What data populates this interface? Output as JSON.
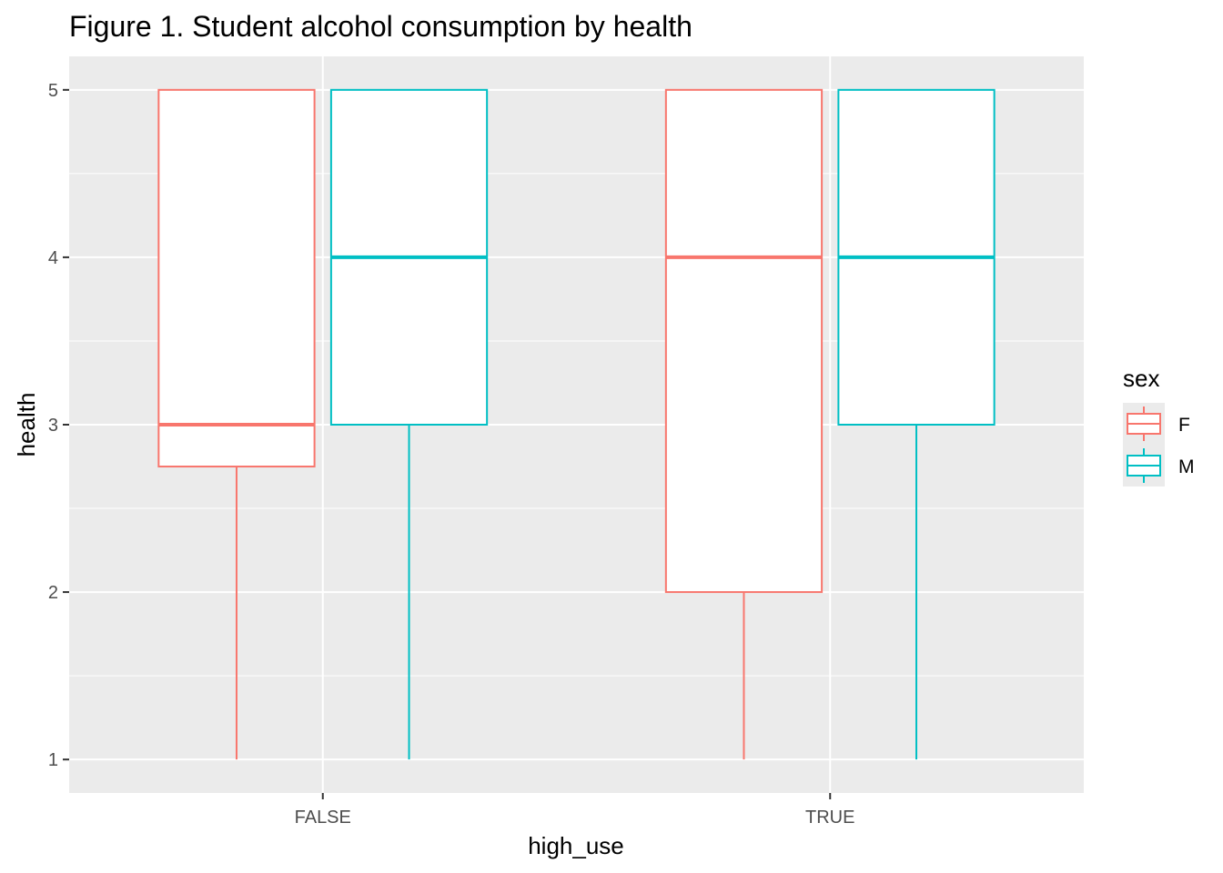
{
  "chart_data": {
    "type": "boxplot",
    "title": "Figure 1. Student alcohol consumption by health",
    "xlabel": "high_use",
    "ylabel": "health",
    "categories": [
      "FALSE",
      "TRUE"
    ],
    "ylim": [
      0.8,
      5.2
    ],
    "yticks": [
      1,
      2,
      3,
      4,
      5
    ],
    "grid": true,
    "legend": {
      "title": "sex",
      "position": "right"
    },
    "series": [
      {
        "name": "F",
        "color": "#F8766D",
        "boxes": [
          {
            "min": 1,
            "q1": 2.75,
            "median": 3,
            "q3": 5,
            "max": 5
          },
          {
            "min": 1,
            "q1": 2,
            "median": 4,
            "q3": 5,
            "max": 5
          }
        ]
      },
      {
        "name": "M",
        "color": "#00BFC4",
        "boxes": [
          {
            "min": 1,
            "q1": 3,
            "median": 4,
            "q3": 5,
            "max": 5
          },
          {
            "min": 1,
            "q1": 3,
            "median": 4,
            "q3": 5,
            "max": 5
          }
        ]
      }
    ]
  }
}
